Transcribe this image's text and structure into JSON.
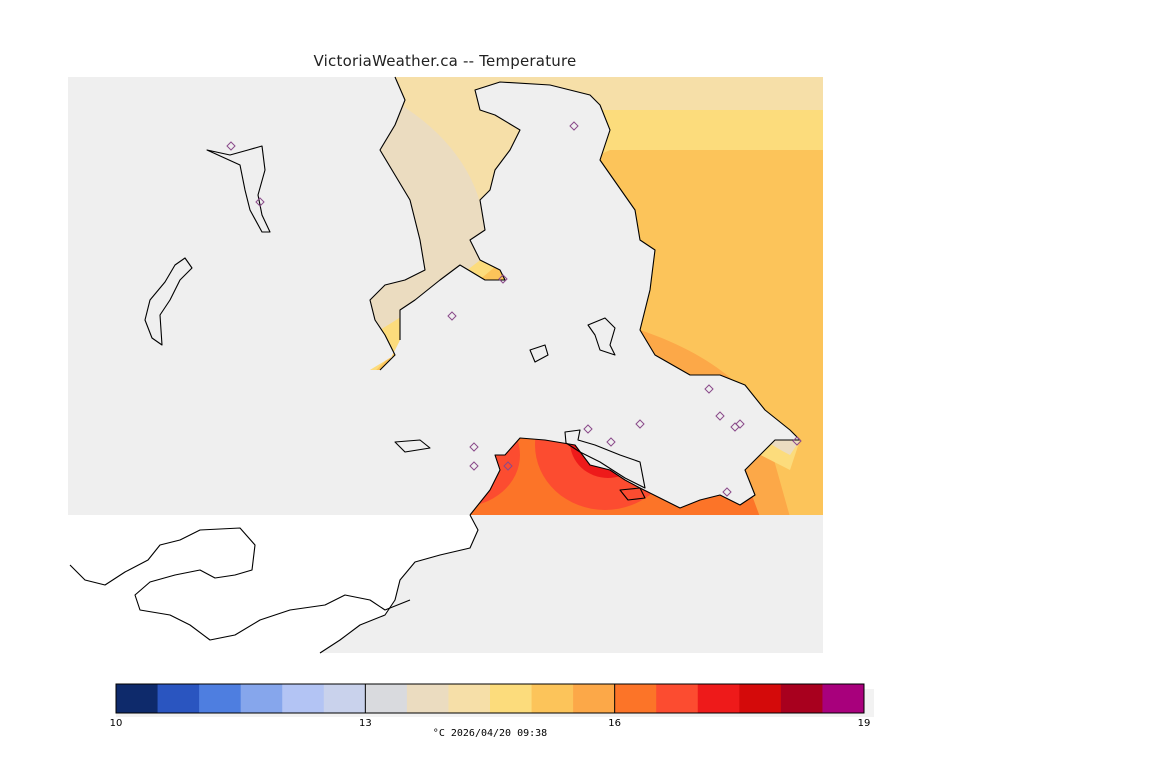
{
  "title": "VictoriaWeather.ca -- Temperature",
  "colors": {
    "land_background": "#efefef",
    "no_data": "#ffffff",
    "coast": "#000000",
    "station": "#8a4a8a"
  },
  "legend": {
    "unit_and_time": "°C  2026/04/20 09:38",
    "tick_labels": [
      "10",
      "13",
      "16",
      "19"
    ],
    "scale_min": 10,
    "scale_max": 19,
    "levels": [
      {
        "from": 10.0,
        "to": 10.5,
        "color": "#0e2a6b"
      },
      {
        "from": 10.5,
        "to": 11.0,
        "color": "#2a55c0"
      },
      {
        "from": 11.0,
        "to": 11.5,
        "color": "#4e7ee0"
      },
      {
        "from": 11.5,
        "to": 12.0,
        "color": "#86a6ec"
      },
      {
        "from": 12.0,
        "to": 12.5,
        "color": "#b3c4f4"
      },
      {
        "from": 12.5,
        "to": 13.0,
        "color": "#c9d2ec"
      },
      {
        "from": 13.0,
        "to": 13.5,
        "color": "#d9dade"
      },
      {
        "from": 13.5,
        "to": 14.0,
        "color": "#ebdcc0"
      },
      {
        "from": 14.0,
        "to": 14.5,
        "color": "#f6dfa8"
      },
      {
        "from": 14.5,
        "to": 15.0,
        "color": "#fcdc7c"
      },
      {
        "from": 15.0,
        "to": 15.5,
        "color": "#fcc45a"
      },
      {
        "from": 15.5,
        "to": 16.0,
        "color": "#fca848"
      },
      {
        "from": 16.0,
        "to": 16.5,
        "color": "#fc7428"
      },
      {
        "from": 16.5,
        "to": 17.0,
        "color": "#fc4c30"
      },
      {
        "from": 17.0,
        "to": 17.5,
        "color": "#ee1a1a"
      },
      {
        "from": 17.5,
        "to": 18.0,
        "color": "#d40a0a"
      },
      {
        "from": 18.0,
        "to": 18.5,
        "color": "#a8001e"
      },
      {
        "from": 18.5,
        "to": 19.0,
        "color": "#a8007c"
      }
    ]
  },
  "icons": {
    "station_marker": "diamond-icon"
  }
}
